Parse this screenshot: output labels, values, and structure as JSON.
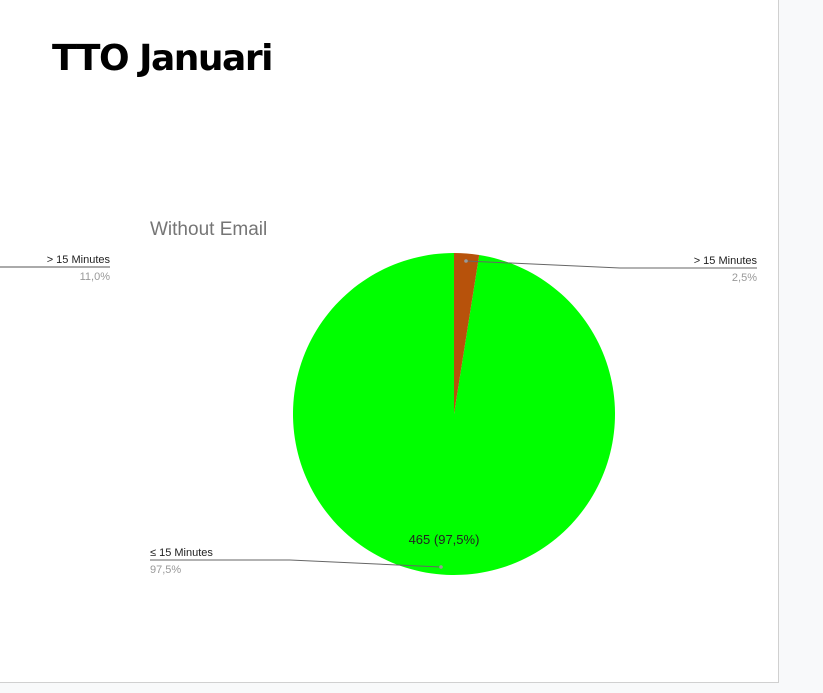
{
  "slide": {
    "title": "TTO Januari"
  },
  "colors": {
    "under_15": "#00ff00",
    "over_15": "#b7520b"
  },
  "side_chart_fragment": {
    "label": "> 15 Minutes",
    "value": "11,0%"
  },
  "chart_data": {
    "type": "pie",
    "title": "Without Email",
    "slices": [
      {
        "label": "> 15 Minutes",
        "percent": 2.5,
        "percent_label": "2,5%",
        "color": "#b7520b"
      },
      {
        "label": "≤ 15 Minutes",
        "value": 465,
        "percent": 97.5,
        "percent_label": "97,5%",
        "data_label": "465 (97,5%)",
        "color": "#00ff00"
      }
    ],
    "legend": "none"
  }
}
